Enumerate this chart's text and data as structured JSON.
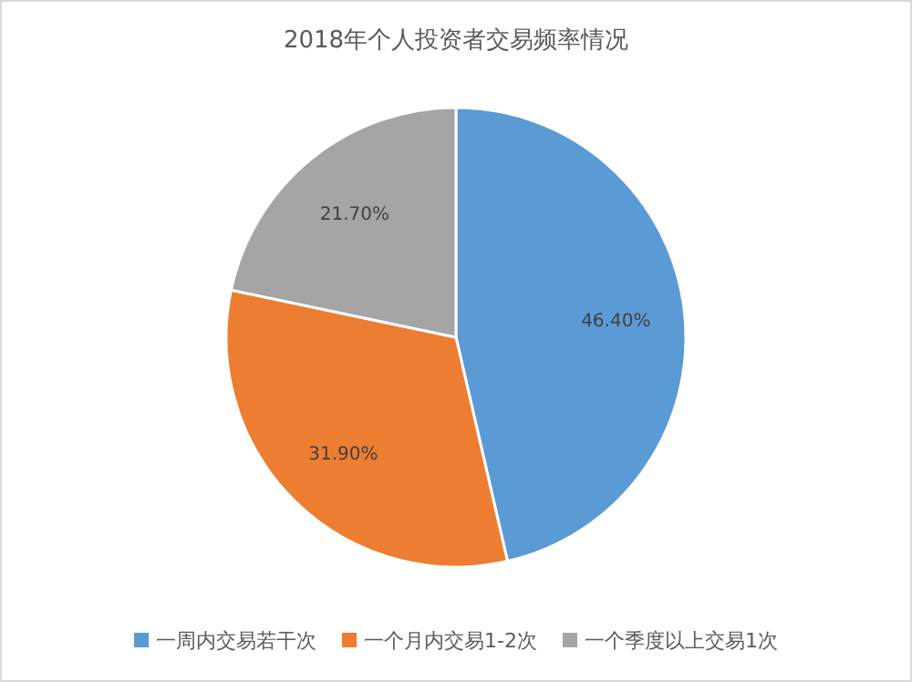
{
  "chart_data": {
    "type": "pie",
    "title": "2018年个人投资者交易频率情况",
    "categories": [
      "一周内交易若干次",
      "一个月内交易1-2次",
      "一个季度以上交易1次"
    ],
    "values": [
      46.4,
      31.9,
      21.7
    ],
    "value_labels": [
      "46.40%",
      "31.90%",
      "21.70%"
    ],
    "colors": [
      "#5b9bd5",
      "#ed7d31",
      "#a5a5a5"
    ],
    "legend": "bottom"
  }
}
